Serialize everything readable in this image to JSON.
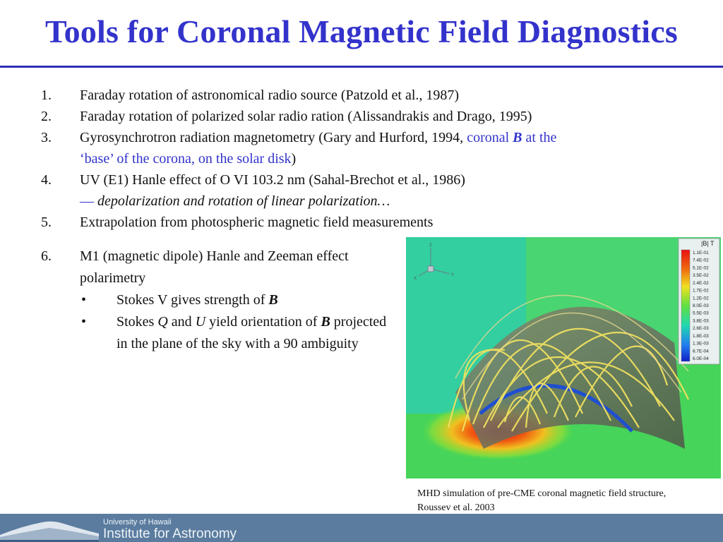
{
  "title": "Tools for Coronal Magnetic Field Diagnostics",
  "items": [
    {
      "num": "1.",
      "text": "Faraday rotation of astronomical radio source (Patzold et al., 1987)"
    },
    {
      "num": "2.",
      "text": "Faraday rotation of polarized solar radio ration (Alissandrakis and Drago, 1995)"
    },
    {
      "num": "3.",
      "text_a": "Gyrosynchrotron radiation magnetometry (Gary and Hurford, 1994, ",
      "blue_a": "coronal ",
      "bold_b": "B",
      "blue_b": " at the",
      "blue_c": "‘base’ of the corona, on the solar disk",
      "text_b": ")"
    },
    {
      "num": "4.",
      "text": "UV (E1) Hanle effect of O VI 103.2 nm (Sahal-Brechot et al., 1986)",
      "dash": "—",
      "italic": " depolarization and rotation of linear polarization…"
    },
    {
      "num": "5.",
      "text": "Extrapolation from photospheric magnetic field measurements"
    },
    {
      "num": "6.",
      "text": "M1 (magnetic dipole) Hanle and Zeeman effect polarimetry"
    }
  ],
  "bullets": [
    {
      "mark": "•",
      "a": "Stokes V gives strength of ",
      "b": "B"
    },
    {
      "mark": "•",
      "a": "Stokes ",
      "q": "Q",
      "and": " and ",
      "u": "U",
      "c": " yield orientation of ",
      "b": "B",
      "d": " projected  in the plane of the sky with a 90 ambiguity"
    }
  ],
  "figure": {
    "legend_title": "|B|  T",
    "legend_values": [
      "1.1E-01",
      "7.4E-02",
      "5.1E-02",
      "3.5E-02",
      "2.4E-02",
      "1.7E-02",
      "1.2E-02",
      "8.0E-03",
      "5.5E-03",
      "3.8E-03",
      "2.6E-03",
      "1.8E-03",
      "1.3E-03",
      "8.7E-04",
      "6.0E-04"
    ],
    "axis_z": "Z",
    "axis_y": "Y",
    "axis_x": "X"
  },
  "caption": "MHD simulation of pre-CME coronal magnetic field structure, Roussev et al. 2003",
  "footer": {
    "university": "University of Hawaii",
    "institute": "Institute for Astronomy"
  }
}
